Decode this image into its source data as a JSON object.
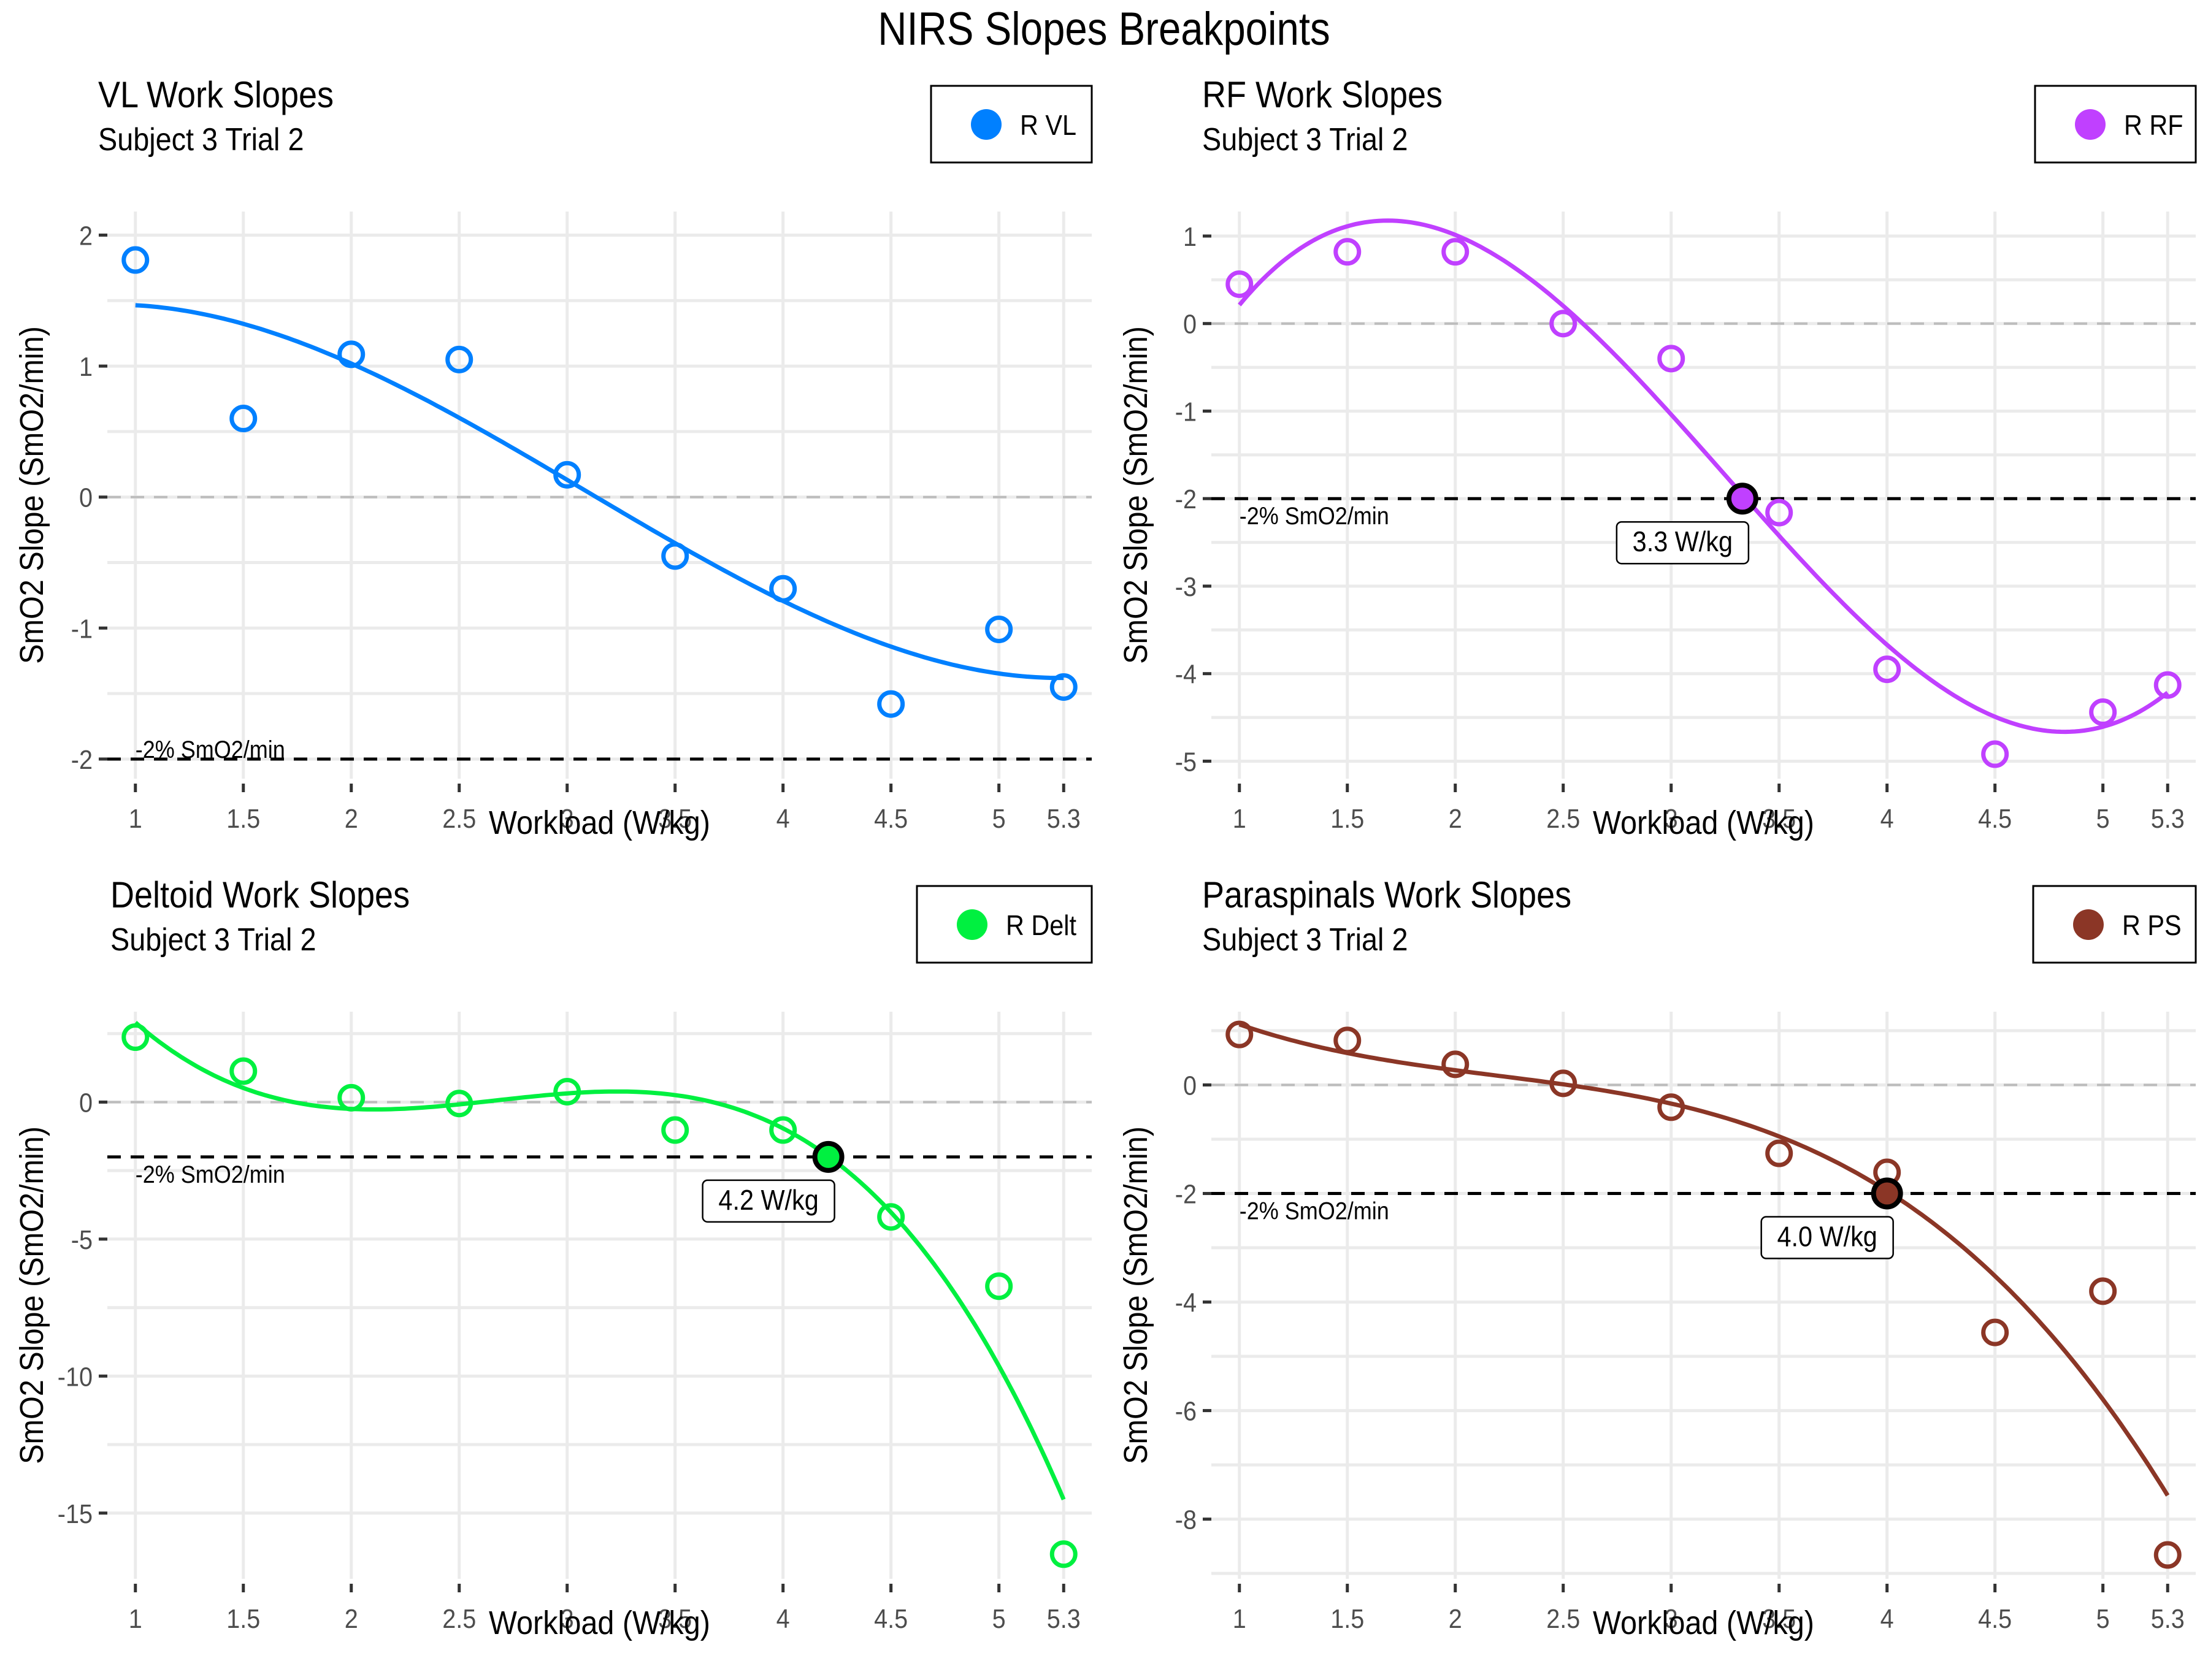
{
  "title": "NIRS Slopes Breakpoints",
  "chart_data": [
    {
      "type": "scatter",
      "title": "VL Work Slopes",
      "subtitle": "Subject 3 Trial 2",
      "xlabel": "Workload (W/kg)",
      "ylabel": "SmO2 Slope (SmO2/min)",
      "legend": {
        "label": "R VL",
        "position": "top-right"
      },
      "color": "#0080FF",
      "x": [
        1,
        1.5,
        2,
        2.5,
        3,
        3.5,
        4,
        4.5,
        5,
        5.3
      ],
      "y": [
        1.81,
        0.6,
        1.09,
        1.05,
        0.17,
        -0.45,
        -0.7,
        -1.58,
        -1.01,
        -1.45
      ],
      "fit": {
        "type": "cubic",
        "x_range": [
          1,
          5.3
        ]
      },
      "xticks": [
        1,
        1.5,
        2,
        2.5,
        3,
        3.5,
        4,
        4.5,
        5,
        5.3
      ],
      "xtick_labels": [
        "1",
        "1.5",
        "2",
        "2.5",
        "3",
        "3.5",
        "4",
        "4.5",
        "5",
        "5.3"
      ],
      "yticks": [
        2,
        1,
        0,
        -1,
        -2
      ],
      "ytick_labels": [
        "2",
        "1",
        "0",
        "-1",
        "-2"
      ],
      "xlim": [
        0.87,
        5.43
      ],
      "ylim": [
        -2.15,
        2.18
      ],
      "ref_lines": [
        {
          "y": 0,
          "style": "grey-dashed"
        },
        {
          "y": -2,
          "style": "black-dashed",
          "label": "-2% SmO2/min"
        }
      ],
      "breakpoint": null,
      "grid": true
    },
    {
      "type": "scatter",
      "title": "RF Work Slopes",
      "subtitle": "Subject 3 Trial 2",
      "xlabel": "Workload (W/kg)",
      "ylabel": "SmO2 Slope (SmO2/min)",
      "legend": {
        "label": "R RF",
        "position": "top-right"
      },
      "color": "#C040FF",
      "x": [
        1,
        1.5,
        2,
        2.5,
        3,
        3.5,
        4,
        4.5,
        5,
        5.3
      ],
      "y": [
        0.45,
        0.82,
        0.82,
        0.0,
        -0.4,
        -2.16,
        -3.95,
        -4.92,
        -4.44,
        -4.13
      ],
      "fit": {
        "type": "cubic",
        "x_range": [
          1,
          5.3
        ]
      },
      "xticks": [
        1,
        1.5,
        2,
        2.5,
        3,
        3.5,
        4,
        4.5,
        5,
        5.3
      ],
      "xtick_labels": [
        "1",
        "1.5",
        "2",
        "2.5",
        "3",
        "3.5",
        "4",
        "4.5",
        "5",
        "5.3"
      ],
      "yticks": [
        1,
        0,
        -1,
        -2,
        -3,
        -4,
        -5
      ],
      "ytick_labels": [
        "1",
        "0",
        "-1",
        "-2",
        "-3",
        "-4",
        "-5"
      ],
      "xlim": [
        0.87,
        5.43
      ],
      "ylim": [
        -5.2,
        1.28
      ],
      "ref_lines": [
        {
          "y": 0,
          "style": "grey-dashed"
        },
        {
          "y": -2,
          "style": "black-dashed",
          "label": "-2% SmO2/min"
        }
      ],
      "breakpoint": {
        "x": 3.33,
        "y": -2,
        "label": "3.3 W/kg"
      },
      "grid": true
    },
    {
      "type": "scatter",
      "title": "Deltoid Work Slopes",
      "subtitle": "Subject 3 Trial 2",
      "xlabel": "Workload (W/kg)",
      "ylabel": "SmO2 Slope (SmO2/min)",
      "legend": {
        "label": "R Delt",
        "position": "top-right"
      },
      "color": "#00F040",
      "x": [
        1,
        1.5,
        2,
        2.5,
        3,
        3.5,
        4,
        4.5,
        5,
        5.3
      ],
      "y": [
        2.37,
        1.13,
        0.16,
        -0.05,
        0.38,
        -1.02,
        -1.02,
        -4.19,
        -6.72,
        -16.5
      ],
      "fit": {
        "type": "cubic",
        "x_range": [
          1,
          5.3
        ]
      },
      "xticks": [
        1,
        1.5,
        2,
        2.5,
        3,
        3.5,
        4,
        4.5,
        5,
        5.3
      ],
      "xtick_labels": [
        "1",
        "1.5",
        "2",
        "2.5",
        "3",
        "3.5",
        "4",
        "4.5",
        "5",
        "5.3"
      ],
      "yticks": [
        0,
        -5,
        -10,
        -15
      ],
      "ytick_labels": [
        "0",
        "-5",
        "-10",
        "-15"
      ],
      "xlim": [
        0.87,
        5.43
      ],
      "ylim": [
        -17.4,
        3.3
      ],
      "ref_lines": [
        {
          "y": 0,
          "style": "grey-dashed"
        },
        {
          "y": -2,
          "style": "black-dashed",
          "label": "-2% SmO2/min"
        }
      ],
      "breakpoint": {
        "x": 4.21,
        "y": -2,
        "label": "4.2 W/kg"
      },
      "grid": true
    },
    {
      "type": "scatter",
      "title": "Paraspinals Work Slopes",
      "subtitle": "Subject 3 Trial 2",
      "xlabel": "Workload (W/kg)",
      "ylabel": "SmO2 Slope (SmO2/min)",
      "legend": {
        "label": "R PS",
        "position": "top-right"
      },
      "color": "#8B3626",
      "x": [
        1,
        1.5,
        2,
        2.5,
        3,
        3.5,
        4,
        4.5,
        5,
        5.3
      ],
      "y": [
        0.93,
        0.82,
        0.38,
        0.03,
        -0.41,
        -1.26,
        -1.61,
        -4.56,
        -3.8,
        -8.66
      ],
      "fit": {
        "type": "cubic",
        "x_range": [
          1,
          5.3
        ]
      },
      "xticks": [
        1,
        1.5,
        2,
        2.5,
        3,
        3.5,
        4,
        4.5,
        5,
        5.3
      ],
      "xtick_labels": [
        "1",
        "1.5",
        "2",
        "2.5",
        "3",
        "3.5",
        "4",
        "4.5",
        "5",
        "5.3"
      ],
      "yticks": [
        0,
        -2,
        -4,
        -6,
        -8
      ],
      "ytick_labels": [
        "0",
        "-2",
        "-4",
        "-6",
        "-8"
      ],
      "xlim": [
        0.87,
        5.43
      ],
      "ylim": [
        -9.1,
        1.35
      ],
      "ref_lines": [
        {
          "y": 0,
          "style": "grey-dashed"
        },
        {
          "y": -2,
          "style": "black-dashed",
          "label": "-2% SmO2/min"
        }
      ],
      "breakpoint": {
        "x": 4.0,
        "y": -2,
        "label": "4.0 W/kg"
      },
      "grid": true
    }
  ]
}
